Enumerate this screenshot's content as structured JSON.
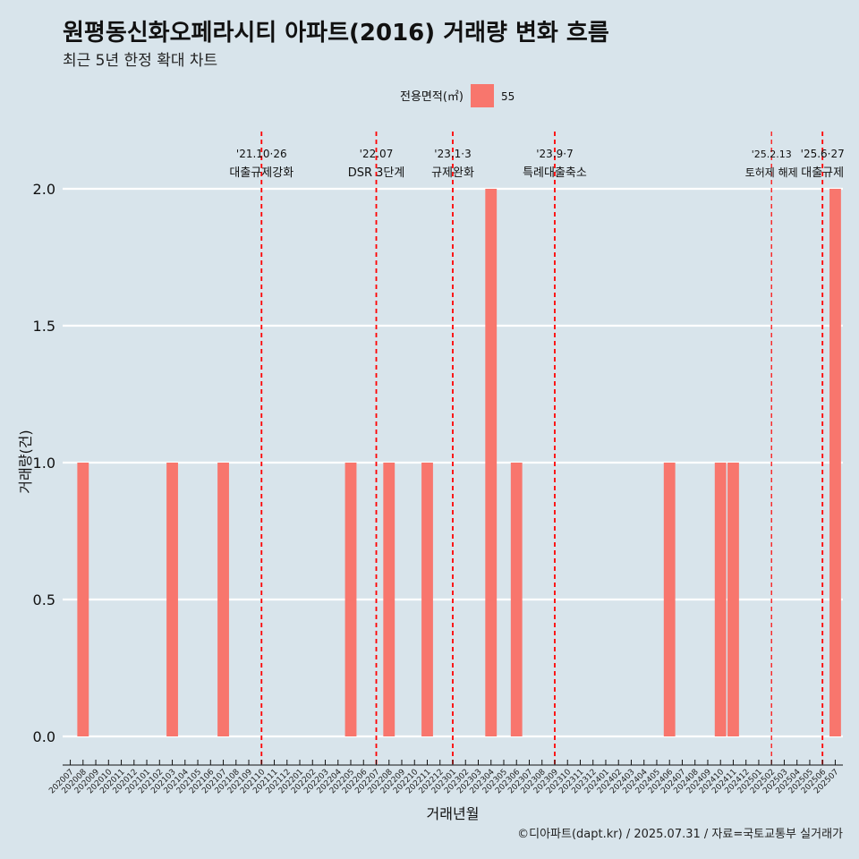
{
  "title": "원평동신화오페라시티 아파트(2016) 거래량 변화 흐름",
  "subtitle": "최근 5년 한정 확대 차트",
  "footer": "©디아파트(dapt.kr) / 2025.07.31 / 자료=국토교통부 실거래가",
  "chart_data": {
    "type": "bar",
    "xlabel": "거래년월",
    "ylabel": "거래량(건)",
    "ylim": [
      0,
      2
    ],
    "yticks": [
      "0.0",
      "0.5",
      "1.0",
      "1.5",
      "2.0"
    ],
    "grid": true,
    "legend": {
      "title": "전용면적(㎡)",
      "placement": "top",
      "entries": [
        {
          "label": "55",
          "color": "#f8766d"
        }
      ]
    },
    "categories": [
      "202007",
      "202008",
      "202009",
      "202010",
      "202011",
      "202012",
      "202101",
      "202102",
      "202103",
      "202104",
      "202105",
      "202106",
      "202107",
      "202108",
      "202109",
      "202110",
      "202111",
      "202112",
      "202201",
      "202202",
      "202203",
      "202204",
      "202205",
      "202206",
      "202207",
      "202208",
      "202209",
      "202210",
      "202211",
      "202212",
      "202301",
      "202302",
      "202303",
      "202304",
      "202305",
      "202306",
      "202307",
      "202308",
      "202309",
      "202310",
      "202311",
      "202312",
      "202401",
      "202402",
      "202403",
      "202404",
      "202405",
      "202406",
      "202407",
      "202408",
      "202409",
      "202410",
      "202411",
      "202412",
      "202501",
      "202502",
      "202503",
      "202504",
      "202505",
      "202506",
      "202507"
    ],
    "series": [
      {
        "name": "55",
        "color": "#f8766d",
        "values": [
          0,
          1,
          0,
          0,
          0,
          0,
          0,
          0,
          1,
          0,
          0,
          0,
          1,
          0,
          0,
          0,
          0,
          0,
          0,
          0,
          0,
          0,
          1,
          0,
          0,
          1,
          0,
          0,
          1,
          0,
          0,
          0,
          0,
          2,
          0,
          1,
          0,
          0,
          0,
          0,
          0,
          0,
          0,
          0,
          0,
          0,
          0,
          1,
          0,
          0,
          0,
          1,
          1,
          0,
          0,
          0,
          0,
          0,
          0,
          0,
          2
        ]
      }
    ],
    "annotations": [
      {
        "at": "202110",
        "date": "'21.10·26",
        "label": "대출규제강화",
        "style": "bold"
      },
      {
        "at": "202207",
        "date": "'22.07",
        "label": "DSR 3단계",
        "style": "bold"
      },
      {
        "at": "202301",
        "date": "'23.1·3",
        "label": "규제완화",
        "style": "bold"
      },
      {
        "at": "202309",
        "date": "'23.9·7",
        "label": "특례대출축소",
        "style": "bold"
      },
      {
        "at": "202502",
        "date": "'25.2.13",
        "label": "토허제 해제",
        "style": "thin"
      },
      {
        "at": "202506",
        "date": "'25.6·27",
        "label": "대출규제",
        "style": "bold"
      }
    ]
  }
}
